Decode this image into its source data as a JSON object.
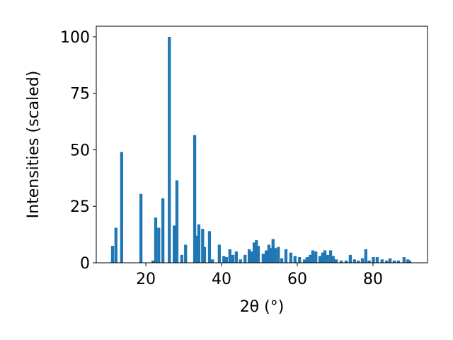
{
  "chart_data": {
    "type": "bar",
    "xlabel": "2θ (°)",
    "ylabel": "Intensities (scaled)",
    "color": "#1f77b4",
    "x": [
      11.2,
      12.1,
      13.6,
      18.7,
      21.9,
      22.6,
      23.4,
      24.5,
      26.2,
      27.5,
      28.2,
      29.5,
      30.5,
      32.9,
      33.5,
      34.0,
      35.0,
      35.5,
      36.8,
      37.6,
      39.4,
      40.6,
      41.3,
      42.2,
      43.0,
      43.9,
      45.0,
      46.2,
      47.3,
      47.9,
      48.6,
      49.2,
      49.7,
      51.0,
      51.8,
      52.5,
      53.1,
      53.6,
      54.2,
      55.0,
      55.9,
      57.0,
      58.3,
      59.4,
      60.6,
      61.9,
      62.6,
      63.4,
      64.1,
      64.9,
      66.0,
      66.7,
      67.3,
      68.0,
      68.8,
      69.5,
      70.3,
      71.6,
      72.9,
      74.0,
      75.1,
      76.1,
      77.2,
      78.1,
      79.0,
      80.1,
      81.1,
      82.4,
      83.6,
      84.5,
      85.6,
      86.7,
      88.2,
      89.2,
      89.7
    ],
    "values": [
      7.5,
      15.5,
      49,
      30.5,
      1,
      20,
      15.5,
      28.5,
      100,
      16.5,
      36.5,
      3.5,
      8,
      56.5,
      12,
      17,
      15,
      7,
      14,
      1.5,
      8,
      3,
      2.5,
      6,
      3.5,
      5,
      1.5,
      3.5,
      6,
      5,
      9,
      10,
      7.5,
      4,
      5.5,
      8,
      6.5,
      10.5,
      6.5,
      7,
      2,
      6,
      4.5,
      3,
      2.5,
      1.5,
      2.5,
      3.5,
      5.5,
      5,
      3,
      4.5,
      5.5,
      3.5,
      5.5,
      3,
      1.5,
      1,
      1,
      3.5,
      1.5,
      1,
      2,
      6,
      1,
      2.5,
      2.5,
      1.5,
      1,
      2,
      1,
      1,
      2.5,
      1.5,
      1
    ],
    "xlim": [
      6.9,
      94.4
    ],
    "ylim": [
      0,
      104.7
    ],
    "xticks": [
      20,
      40,
      60,
      80
    ],
    "yticks": [
      0,
      25,
      50,
      75,
      100
    ],
    "grid": false
  }
}
